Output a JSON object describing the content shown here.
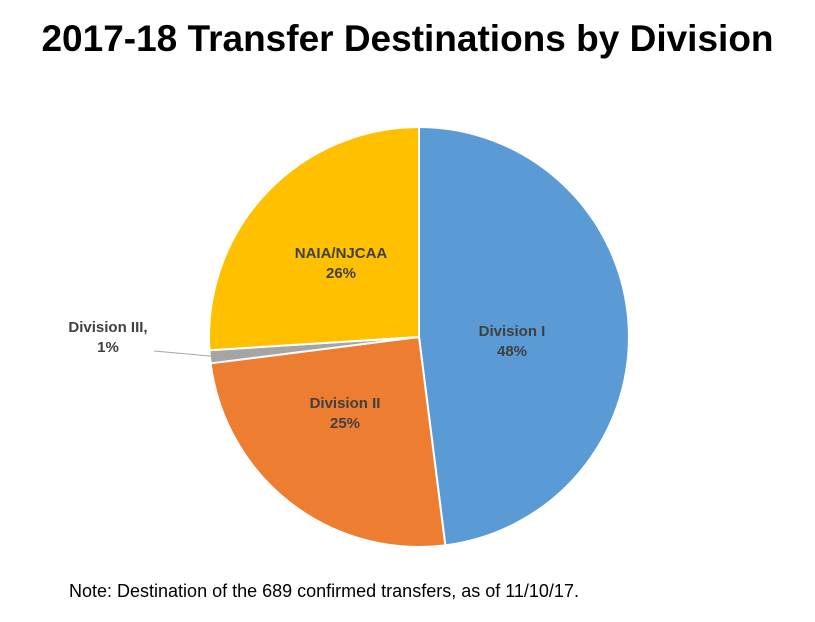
{
  "chart_data": {
    "type": "pie",
    "title": "2017-18 Transfer Destinations by Division",
    "note": "Note: Destination of the 689 confirmed transfers, as of 11/10/17.",
    "slices": [
      {
        "label": "Division I",
        "value": 48,
        "value_label": "48%",
        "color": "#5B9BD5"
      },
      {
        "label": "Division II",
        "value": 25,
        "value_label": "25%",
        "color": "#ED7D31"
      },
      {
        "label": "Division III,",
        "value": 1,
        "value_label": "1%",
        "color": "#A5A5A5"
      },
      {
        "label": "NAIA/NJCAA",
        "value": 26,
        "value_label": "26%",
        "color": "#FFC000"
      }
    ],
    "start": "12 o'clock",
    "direction": "clockwise",
    "legend": "none"
  }
}
